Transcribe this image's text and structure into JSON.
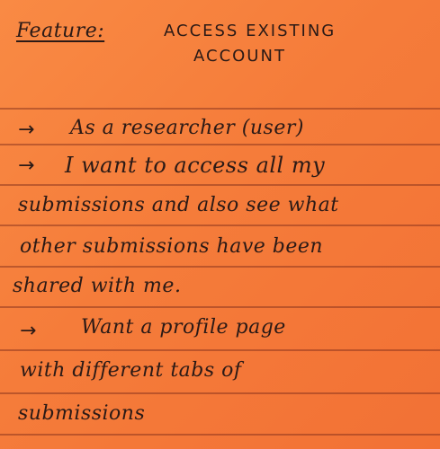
{
  "note": {
    "feature_label": "Feature:",
    "feature_title_line1": "ACCESS EXISTING",
    "feature_title_line2": "ACCOUNT",
    "arrow_glyph": "→",
    "lines": [
      "As a researcher (user)",
      "I want to access all my",
      "submissions and also see what",
      "other submissions have been",
      "shared with me.",
      "Want a profile page",
      "with different tabs of",
      "submissions"
    ],
    "paper_color": "#f57c3a",
    "ink_color": "#2b1a16"
  }
}
